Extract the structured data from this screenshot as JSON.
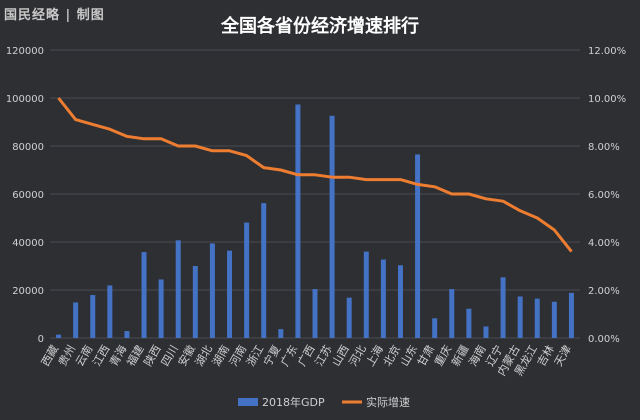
{
  "brand": "国民经略 | 制图",
  "chart_data": {
    "type": "bar+line",
    "title": "全国各省份经济增速排行",
    "categories": [
      "西藏",
      "贵州",
      "云南",
      "江西",
      "青海",
      "福建",
      "陕西",
      "四川",
      "安徽",
      "湖北",
      "湖南",
      "河南",
      "浙江",
      "宁夏",
      "广东",
      "广西",
      "江苏",
      "山西",
      "河北",
      "上海",
      "北京",
      "山东",
      "甘肃",
      "重庆",
      "新疆",
      "海南",
      "辽宁",
      "内蒙古",
      "黑龙江",
      "吉林",
      "天津"
    ],
    "series": [
      {
        "name": "2018年GDP",
        "type": "bar",
        "axis": "left",
        "color": "#4472c4",
        "values": [
          1400,
          14800,
          17900,
          21900,
          2900,
          35800,
          24400,
          40700,
          30000,
          39400,
          36400,
          48100,
          56200,
          3700,
          97300,
          20400,
          92600,
          16800,
          36000,
          32700,
          30300,
          76500,
          8200,
          20400,
          12200,
          4800,
          25300,
          17300,
          16400,
          15100,
          18800
        ]
      },
      {
        "name": "实际增速",
        "type": "line",
        "axis": "right",
        "color": "#ed7d31",
        "values": [
          10.0,
          9.1,
          8.9,
          8.7,
          8.4,
          8.3,
          8.3,
          8.0,
          8.0,
          7.8,
          7.8,
          7.6,
          7.1,
          7.0,
          6.8,
          6.8,
          6.7,
          6.7,
          6.6,
          6.6,
          6.6,
          6.4,
          6.3,
          6.0,
          6.0,
          5.8,
          5.7,
          5.3,
          5.0,
          4.5,
          3.6
        ]
      }
    ],
    "y_left": {
      "min": 0,
      "max": 120000,
      "ticks": [
        "0",
        "20000",
        "40000",
        "60000",
        "80000",
        "100000",
        "120000"
      ]
    },
    "y_right": {
      "min": 0,
      "max": 12,
      "ticks": [
        "0.00%",
        "2.00%",
        "4.00%",
        "6.00%",
        "8.00%",
        "10.00%",
        "12.00%"
      ]
    },
    "grid": true,
    "legend_position": "bottom"
  },
  "colors": {
    "background": "#2e2f33",
    "bar": "#4472c4",
    "line": "#ed7d31",
    "grid": "#4a4b50",
    "text": "#d0d0d0"
  }
}
